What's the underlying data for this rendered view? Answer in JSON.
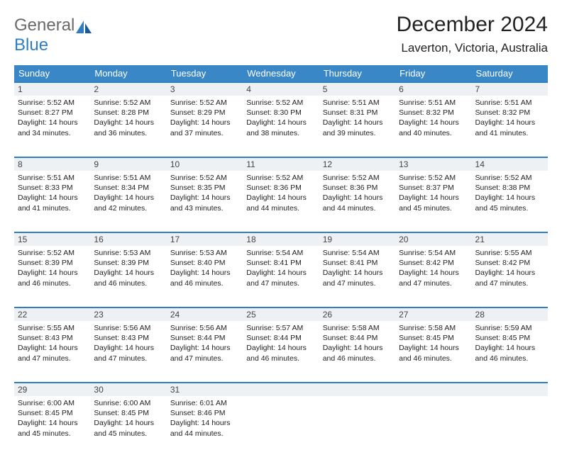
{
  "logo": {
    "part1": "General",
    "part2": "Blue"
  },
  "title": "December 2024",
  "location": "Laverton, Victoria, Australia",
  "colors": {
    "header_bg": "#3a87c8",
    "header_text": "#ffffff",
    "daynum_bg": "#eef1f4",
    "row_border": "#2f7dc4",
    "logo_gray": "#6a6a6a",
    "logo_blue": "#2f7dc4"
  },
  "weekdays": [
    "Sunday",
    "Monday",
    "Tuesday",
    "Wednesday",
    "Thursday",
    "Friday",
    "Saturday"
  ],
  "weeks": [
    [
      {
        "n": "1",
        "sr": "5:52 AM",
        "ss": "8:27 PM",
        "dl": "14 hours and 34 minutes."
      },
      {
        "n": "2",
        "sr": "5:52 AM",
        "ss": "8:28 PM",
        "dl": "14 hours and 36 minutes."
      },
      {
        "n": "3",
        "sr": "5:52 AM",
        "ss": "8:29 PM",
        "dl": "14 hours and 37 minutes."
      },
      {
        "n": "4",
        "sr": "5:52 AM",
        "ss": "8:30 PM",
        "dl": "14 hours and 38 minutes."
      },
      {
        "n": "5",
        "sr": "5:51 AM",
        "ss": "8:31 PM",
        "dl": "14 hours and 39 minutes."
      },
      {
        "n": "6",
        "sr": "5:51 AM",
        "ss": "8:32 PM",
        "dl": "14 hours and 40 minutes."
      },
      {
        "n": "7",
        "sr": "5:51 AM",
        "ss": "8:32 PM",
        "dl": "14 hours and 41 minutes."
      }
    ],
    [
      {
        "n": "8",
        "sr": "5:51 AM",
        "ss": "8:33 PM",
        "dl": "14 hours and 41 minutes."
      },
      {
        "n": "9",
        "sr": "5:51 AM",
        "ss": "8:34 PM",
        "dl": "14 hours and 42 minutes."
      },
      {
        "n": "10",
        "sr": "5:52 AM",
        "ss": "8:35 PM",
        "dl": "14 hours and 43 minutes."
      },
      {
        "n": "11",
        "sr": "5:52 AM",
        "ss": "8:36 PM",
        "dl": "14 hours and 44 minutes."
      },
      {
        "n": "12",
        "sr": "5:52 AM",
        "ss": "8:36 PM",
        "dl": "14 hours and 44 minutes."
      },
      {
        "n": "13",
        "sr": "5:52 AM",
        "ss": "8:37 PM",
        "dl": "14 hours and 45 minutes."
      },
      {
        "n": "14",
        "sr": "5:52 AM",
        "ss": "8:38 PM",
        "dl": "14 hours and 45 minutes."
      }
    ],
    [
      {
        "n": "15",
        "sr": "5:52 AM",
        "ss": "8:39 PM",
        "dl": "14 hours and 46 minutes."
      },
      {
        "n": "16",
        "sr": "5:53 AM",
        "ss": "8:39 PM",
        "dl": "14 hours and 46 minutes."
      },
      {
        "n": "17",
        "sr": "5:53 AM",
        "ss": "8:40 PM",
        "dl": "14 hours and 46 minutes."
      },
      {
        "n": "18",
        "sr": "5:54 AM",
        "ss": "8:41 PM",
        "dl": "14 hours and 47 minutes."
      },
      {
        "n": "19",
        "sr": "5:54 AM",
        "ss": "8:41 PM",
        "dl": "14 hours and 47 minutes."
      },
      {
        "n": "20",
        "sr": "5:54 AM",
        "ss": "8:42 PM",
        "dl": "14 hours and 47 minutes."
      },
      {
        "n": "21",
        "sr": "5:55 AM",
        "ss": "8:42 PM",
        "dl": "14 hours and 47 minutes."
      }
    ],
    [
      {
        "n": "22",
        "sr": "5:55 AM",
        "ss": "8:43 PM",
        "dl": "14 hours and 47 minutes."
      },
      {
        "n": "23",
        "sr": "5:56 AM",
        "ss": "8:43 PM",
        "dl": "14 hours and 47 minutes."
      },
      {
        "n": "24",
        "sr": "5:56 AM",
        "ss": "8:44 PM",
        "dl": "14 hours and 47 minutes."
      },
      {
        "n": "25",
        "sr": "5:57 AM",
        "ss": "8:44 PM",
        "dl": "14 hours and 46 minutes."
      },
      {
        "n": "26",
        "sr": "5:58 AM",
        "ss": "8:44 PM",
        "dl": "14 hours and 46 minutes."
      },
      {
        "n": "27",
        "sr": "5:58 AM",
        "ss": "8:45 PM",
        "dl": "14 hours and 46 minutes."
      },
      {
        "n": "28",
        "sr": "5:59 AM",
        "ss": "8:45 PM",
        "dl": "14 hours and 46 minutes."
      }
    ],
    [
      {
        "n": "29",
        "sr": "6:00 AM",
        "ss": "8:45 PM",
        "dl": "14 hours and 45 minutes."
      },
      {
        "n": "30",
        "sr": "6:00 AM",
        "ss": "8:45 PM",
        "dl": "14 hours and 45 minutes."
      },
      {
        "n": "31",
        "sr": "6:01 AM",
        "ss": "8:46 PM",
        "dl": "14 hours and 44 minutes."
      },
      null,
      null,
      null,
      null
    ]
  ],
  "labels": {
    "sunrise": "Sunrise:",
    "sunset": "Sunset:",
    "daylight": "Daylight:"
  }
}
